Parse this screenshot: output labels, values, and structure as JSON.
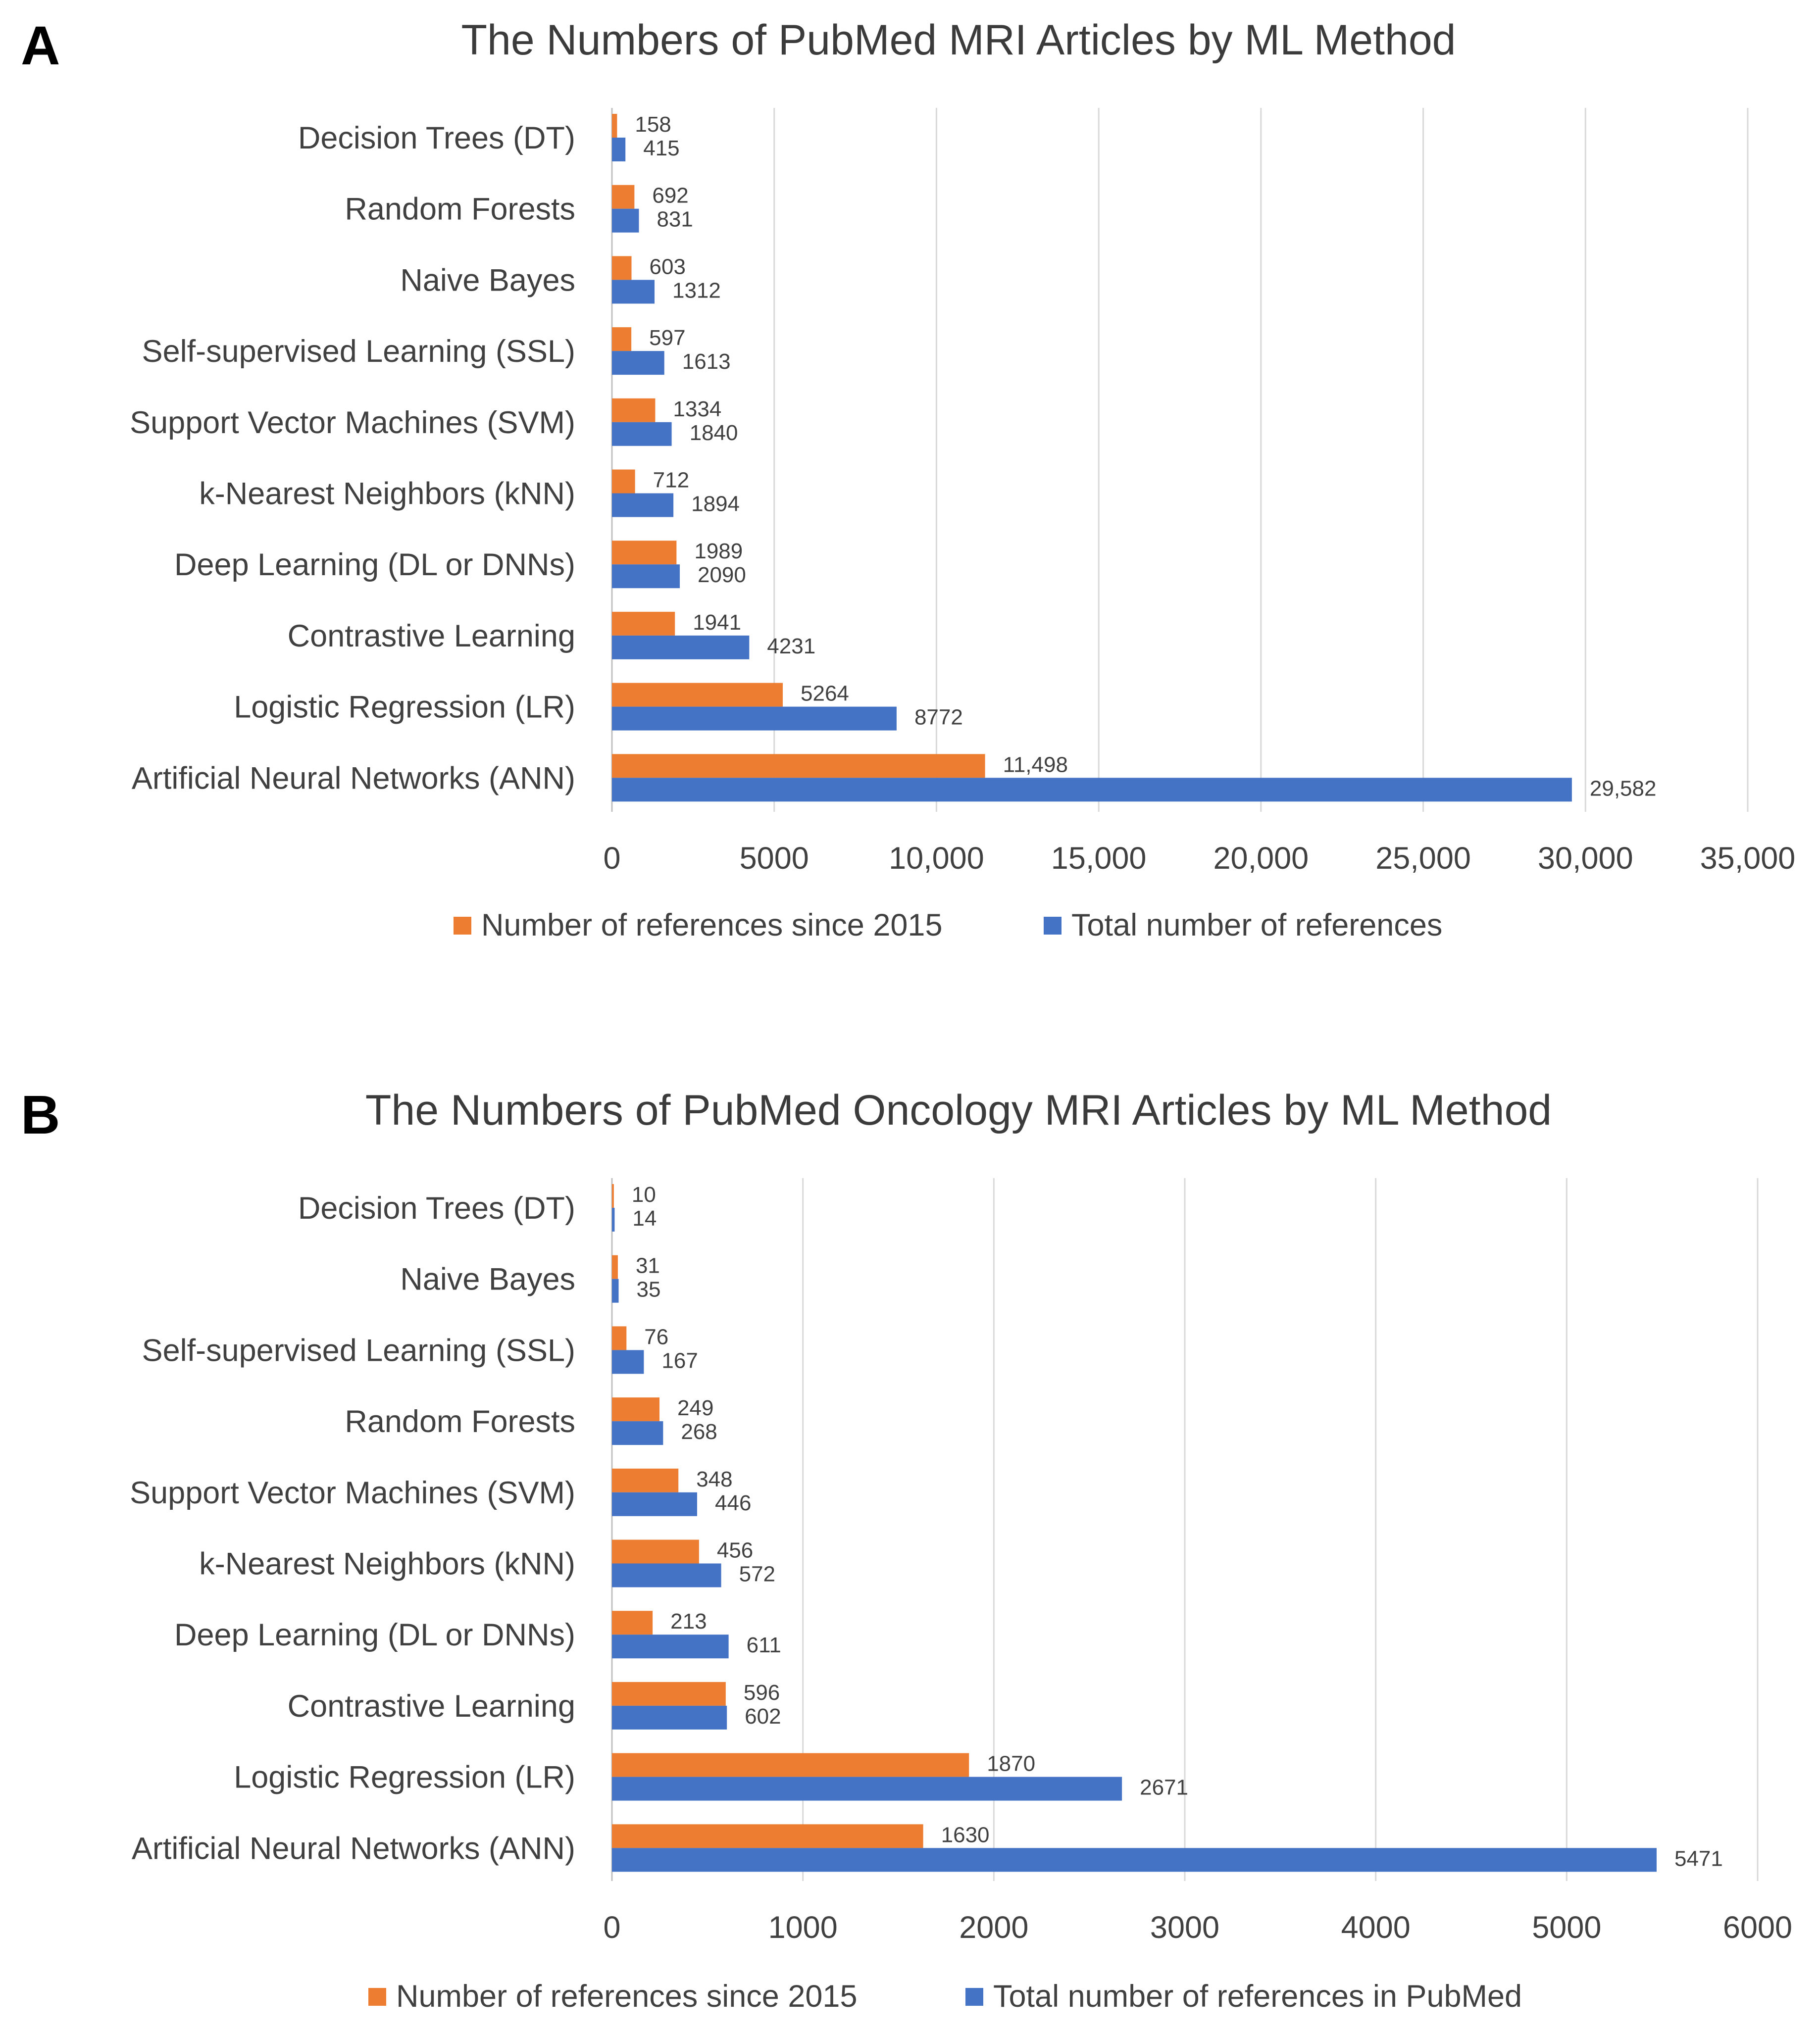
{
  "colors": {
    "since_2015": "#ED7D31",
    "total": "#4472C4",
    "grid": "#d9d9d9",
    "text": "#404040"
  },
  "chart_data": [
    {
      "panel": "A",
      "type": "bar",
      "orientation": "horizontal",
      "title": "The Numbers of PubMed MRI Articles by ML Method",
      "categories": [
        "Decision Trees (DT)",
        "Random Forests",
        "Naive Bayes",
        "Self-supervised Learning (SSL)",
        "Support Vector Machines (SVM)",
        "k-Nearest Neighbors (kNN)",
        "Deep Learning (DL or DNNs)",
        "Contrastive Learning",
        "Logistic Regression (LR)",
        "Artificial Neural Networks (ANN)"
      ],
      "series": [
        {
          "name": "Number of references since 2015",
          "color": "#ED7D31",
          "values": [
            158,
            692,
            603,
            597,
            1334,
            712,
            1989,
            1941,
            5264,
            11498
          ],
          "labels": [
            "158",
            "692",
            "603",
            "597",
            "1334",
            "712",
            "1989",
            "1941",
            "5264",
            "11,498"
          ]
        },
        {
          "name": "Total number of references",
          "color": "#4472C4",
          "values": [
            415,
            831,
            1312,
            1613,
            1840,
            1894,
            2090,
            4231,
            8772,
            29582
          ],
          "labels": [
            "415",
            "831",
            "1312",
            "1613",
            "1840",
            "1894",
            "2090",
            "4231",
            "8772",
            "29,582"
          ]
        }
      ],
      "xlim": [
        0,
        35000
      ],
      "ticks": [
        0,
        5000,
        10000,
        15000,
        20000,
        25000,
        30000,
        35000
      ],
      "tick_labels": [
        "0",
        "5000",
        "10,000",
        "15,000",
        "20,000",
        "25,000",
        "30,000",
        "35,000"
      ],
      "grid": true,
      "legend_position": "bottom"
    },
    {
      "panel": "B",
      "type": "bar",
      "orientation": "horizontal",
      "title": "The Numbers of PubMed Oncology MRI Articles  by ML Method",
      "categories": [
        "Decision Trees (DT)",
        "Naive Bayes",
        "Self-supervised Learning (SSL)",
        "Random Forests",
        "Support Vector Machines (SVM)",
        "k-Nearest Neighbors (kNN)",
        "Deep Learning (DL or DNNs)",
        "Contrastive Learning",
        "Logistic Regression (LR)",
        "Artificial Neural Networks (ANN)"
      ],
      "series": [
        {
          "name": "Number of references since 2015",
          "color": "#ED7D31",
          "values": [
            10,
            31,
            76,
            249,
            348,
            456,
            213,
            596,
            1870,
            1630
          ],
          "labels": [
            "10",
            "31",
            "76",
            "249",
            "348",
            "456",
            "213",
            "596",
            "1870",
            "1630"
          ]
        },
        {
          "name": "Total number of references in PubMed",
          "color": "#4472C4",
          "values": [
            14,
            35,
            167,
            268,
            446,
            572,
            611,
            602,
            2671,
            5471
          ],
          "labels": [
            "14",
            "35",
            "167",
            "268",
            "446",
            "572",
            "611",
            "602",
            "2671",
            "5471"
          ]
        }
      ],
      "xlim": [
        0,
        6000
      ],
      "ticks": [
        0,
        1000,
        2000,
        3000,
        4000,
        5000,
        6000
      ],
      "tick_labels": [
        "0",
        "1000",
        "2000",
        "3000",
        "4000",
        "5000",
        "6000"
      ],
      "grid": true,
      "legend_position": "bottom"
    }
  ]
}
